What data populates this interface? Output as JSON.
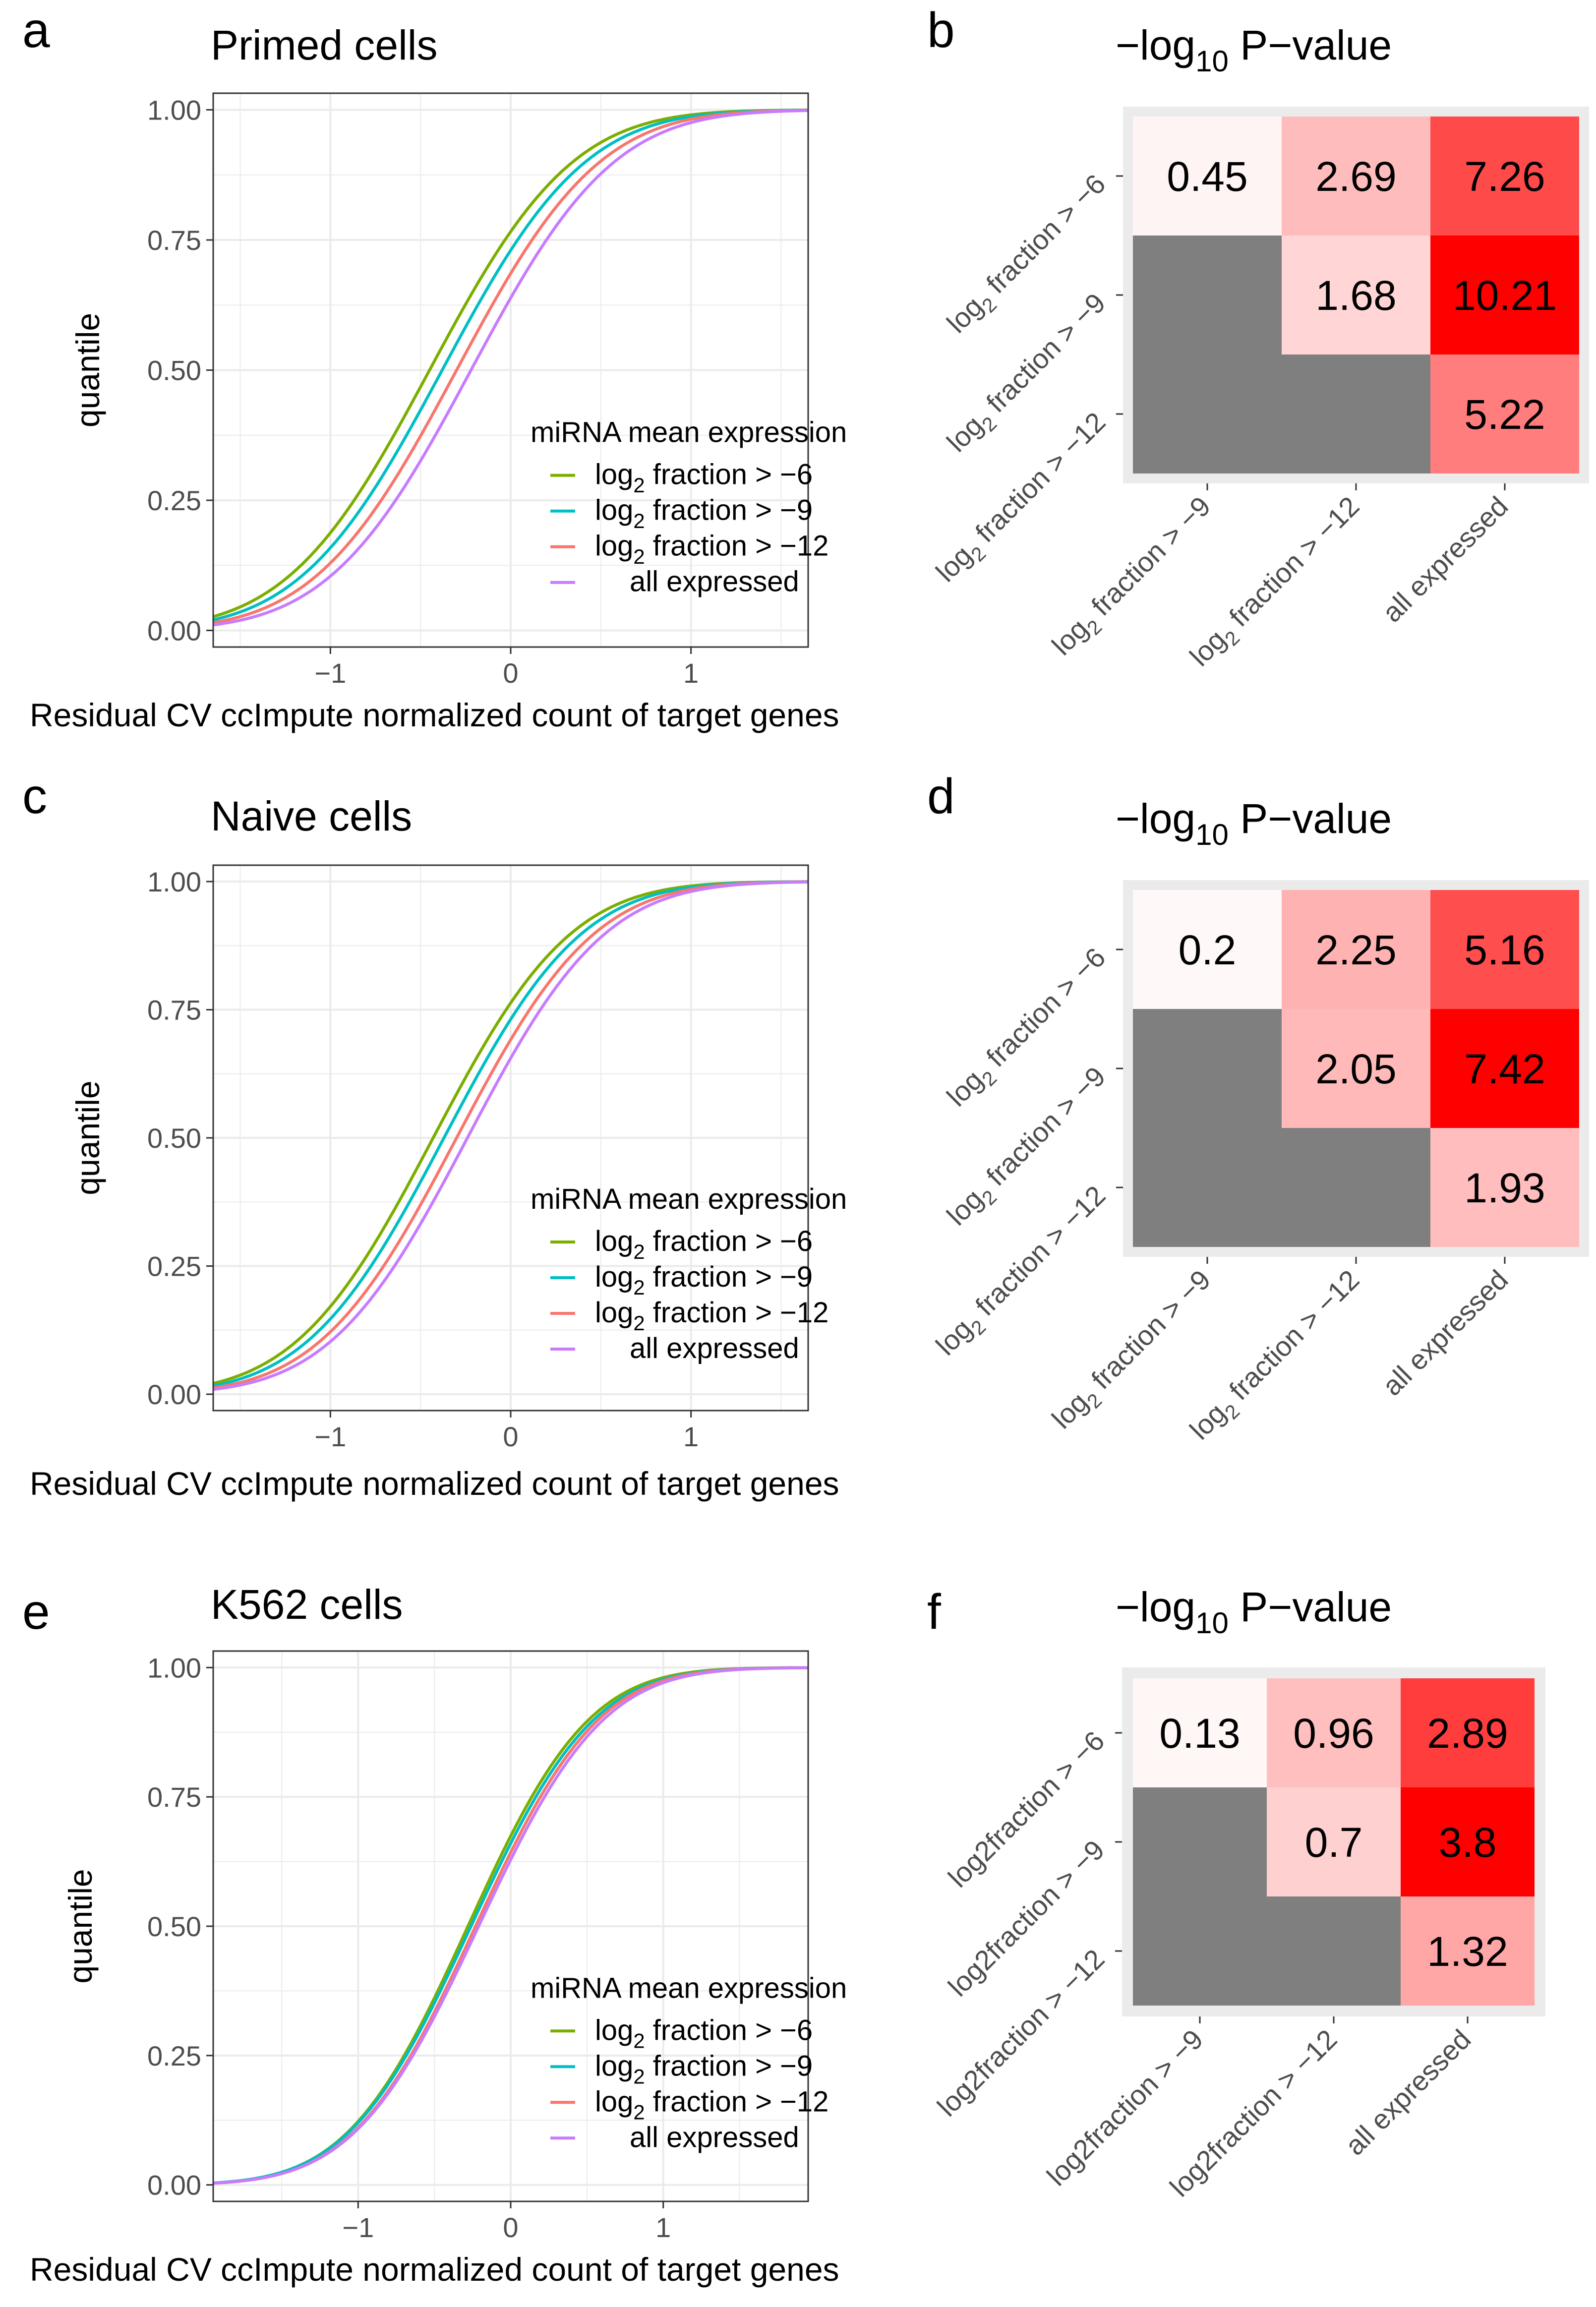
{
  "figure": {
    "ylabel": "quantile",
    "xlabel": "Residual CV ccImpute normalized count of target genes",
    "legend_title": "miRNA mean expression",
    "heatmap_title_prefix": "−log",
    "heatmap_title_sub": "10",
    "heatmap_title_suffix": " P−value",
    "series_colors": {
      "log2 fraction > -6": "#7CAE00",
      "log2 fraction > -9": "#00BFC4",
      "log2 fraction > -12": "#F8766D",
      "all expressed": "#C77CFF"
    },
    "grid_bg": "#EBEBEB",
    "na_color": "#7F7F7F"
  },
  "chart_data": [
    {
      "panel": "a",
      "type": "line",
      "title": "Primed cells",
      "xlabel": "Residual CV ccImpute normalized count of target genes",
      "ylabel": "quantile",
      "xlim": [
        -1.65,
        1.65
      ],
      "ylim": [
        0,
        1
      ],
      "xticks": [
        -1,
        0,
        1
      ],
      "xtick_labels": [
        "−1",
        "0",
        "1"
      ],
      "yticks": [
        0,
        0.25,
        0.5,
        0.75,
        1
      ],
      "ytick_labels": [
        "0.00",
        "0.25",
        "0.50",
        "0.75",
        "1.00"
      ],
      "legend_title": "miRNA mean expression",
      "legend_position": "bottom-right",
      "series": [
        {
          "name": "log2 fraction > -6",
          "legend_pre": "log",
          "legend_sub": "2",
          "legend_post": " fraction > −6",
          "color": "#7CAE00",
          "mu": -0.45,
          "sigma": 0.62
        },
        {
          "name": "log2 fraction > -9",
          "legend_pre": "log",
          "legend_sub": "2",
          "legend_post": " fraction > −9",
          "color": "#00BFC4",
          "mu": -0.38,
          "sigma": 0.62
        },
        {
          "name": "log2 fraction > -12",
          "legend_pre": "log",
          "legend_sub": "2",
          "legend_post": " fraction > −12",
          "color": "#F8766D",
          "mu": -0.3,
          "sigma": 0.62
        },
        {
          "name": "all expressed",
          "legend_pre": "all expressed",
          "legend_sub": "",
          "legend_post": "",
          "color": "#C77CFF",
          "mu": -0.22,
          "sigma": 0.62
        }
      ]
    },
    {
      "panel": "b",
      "type": "heatmap",
      "title": "−log10 P−value",
      "rows": [
        "log2 fraction > -6",
        "log2 fraction > -9",
        "log2 fraction > -12"
      ],
      "cols": [
        "log2 fraction > -9",
        "log2 fraction > -12",
        "all expressed"
      ],
      "row_labels": [
        {
          "pre": "log",
          "sub": "2",
          "post": " fraction > −6"
        },
        {
          "pre": "log",
          "sub": "2",
          "post": " fraction > −9"
        },
        {
          "pre": "log",
          "sub": "2",
          "post": " fraction > −12"
        }
      ],
      "col_labels": [
        {
          "pre": "log",
          "sub": "2",
          "post": " fraction > −9"
        },
        {
          "pre": "log",
          "sub": "2",
          "post": " fraction > −12"
        },
        {
          "pre": "all expressed",
          "sub": "",
          "post": ""
        }
      ],
      "values": [
        [
          0.45,
          2.69,
          7.26
        ],
        [
          null,
          1.68,
          10.21
        ],
        [
          null,
          null,
          5.22
        ]
      ],
      "labels": [
        [
          "0.45",
          "2.69",
          "7.26"
        ],
        [
          "",
          "1.68",
          "10.21"
        ],
        [
          "",
          "",
          "5.22"
        ]
      ],
      "vmax": 10.21
    },
    {
      "panel": "c",
      "type": "line",
      "title": "Naive cells",
      "xlabel": "Residual CV ccImpute normalized count of target genes",
      "ylabel": "quantile",
      "xlim": [
        -1.65,
        1.65
      ],
      "ylim": [
        0,
        1
      ],
      "xticks": [
        -1,
        0,
        1
      ],
      "xtick_labels": [
        "−1",
        "0",
        "1"
      ],
      "yticks": [
        0,
        0.25,
        0.5,
        0.75,
        1
      ],
      "ytick_labels": [
        "0.00",
        "0.25",
        "0.50",
        "0.75",
        "1.00"
      ],
      "legend_title": "miRNA mean expression",
      "legend_position": "bottom-right",
      "series": [
        {
          "name": "log2 fraction > -6",
          "legend_pre": "log",
          "legend_sub": "2",
          "legend_post": " fraction > −6",
          "color": "#7CAE00",
          "mu": -0.43,
          "sigma": 0.6
        },
        {
          "name": "log2 fraction > -9",
          "legend_pre": "log",
          "legend_sub": "2",
          "legend_post": " fraction > −9",
          "color": "#00BFC4",
          "mu": -0.37,
          "sigma": 0.6
        },
        {
          "name": "log2 fraction > -12",
          "legend_pre": "log",
          "legend_sub": "2",
          "legend_post": " fraction > −12",
          "color": "#F8766D",
          "mu": -0.3,
          "sigma": 0.6
        },
        {
          "name": "all expressed",
          "legend_pre": "all expressed",
          "legend_sub": "",
          "legend_post": "",
          "color": "#C77CFF",
          "mu": -0.24,
          "sigma": 0.6
        }
      ]
    },
    {
      "panel": "d",
      "type": "heatmap",
      "title": "−log10 P−value",
      "rows": [
        "log2 fraction > -6",
        "log2 fraction > -9",
        "log2 fraction > -12"
      ],
      "cols": [
        "log2 fraction > -9",
        "log2 fraction > -12",
        "all expressed"
      ],
      "row_labels": [
        {
          "pre": "log",
          "sub": "2",
          "post": " fraction > −6"
        },
        {
          "pre": "log",
          "sub": "2",
          "post": " fraction > −9"
        },
        {
          "pre": "log",
          "sub": "2",
          "post": " fraction > −12"
        }
      ],
      "col_labels": [
        {
          "pre": "log",
          "sub": "2",
          "post": " fraction > −9"
        },
        {
          "pre": "log",
          "sub": "2",
          "post": " fraction > −12"
        },
        {
          "pre": "all expressed",
          "sub": "",
          "post": ""
        }
      ],
      "values": [
        [
          0.2,
          2.25,
          5.16
        ],
        [
          null,
          2.05,
          7.42
        ],
        [
          null,
          null,
          1.93
        ]
      ],
      "labels": [
        [
          "0.2",
          "2.25",
          "5.16"
        ],
        [
          "",
          "2.05",
          "7.42"
        ],
        [
          "",
          "",
          "1.93"
        ]
      ],
      "vmax": 7.42
    },
    {
      "panel": "e",
      "type": "line",
      "title": "K562 cells",
      "xlabel": "Residual CV ccImpute normalized count of target genes",
      "ylabel": "quantile",
      "xlim": [
        -1.95,
        1.95
      ],
      "ylim": [
        0,
        1
      ],
      "xticks": [
        -1,
        0,
        1
      ],
      "xtick_labels": [
        "−1",
        "0",
        "1"
      ],
      "yticks": [
        0,
        0.25,
        0.5,
        0.75,
        1
      ],
      "ytick_labels": [
        "0.00",
        "0.25",
        "0.50",
        "0.75",
        "1.00"
      ],
      "legend_title": "miRNA mean expression",
      "legend_position": "bottom-right",
      "series": [
        {
          "name": "log2 fraction > -6",
          "legend_pre": "log",
          "legend_sub": "2",
          "legend_post": " fraction > −6",
          "color": "#7CAE00",
          "mu": -0.28,
          "sigma": 0.62
        },
        {
          "name": "log2 fraction > -9",
          "legend_pre": "log",
          "legend_sub": "2",
          "legend_post": " fraction > −9",
          "color": "#00BFC4",
          "mu": -0.26,
          "sigma": 0.63
        },
        {
          "name": "log2 fraction > -12",
          "legend_pre": "log",
          "legend_sub": "2",
          "legend_post": " fraction > −12",
          "color": "#F8766D",
          "mu": -0.23,
          "sigma": 0.63
        },
        {
          "name": "all expressed",
          "legend_pre": "all expressed",
          "legend_sub": "",
          "legend_post": "",
          "color": "#C77CFF",
          "mu": -0.21,
          "sigma": 0.64
        }
      ]
    },
    {
      "panel": "f",
      "type": "heatmap",
      "title": "−log10 P−value",
      "rows": [
        "log2fraction > -6",
        "log2fraction > -9",
        "log2fraction > -12"
      ],
      "cols": [
        "log2fraction > -9",
        "log2fraction > -12",
        "all expressed"
      ],
      "row_labels": [
        {
          "pre": "log2fraction > −6",
          "sub": "",
          "post": ""
        },
        {
          "pre": "log2fraction > −9",
          "sub": "",
          "post": ""
        },
        {
          "pre": "log2fraction > −12",
          "sub": "",
          "post": ""
        }
      ],
      "col_labels": [
        {
          "pre": "log2fraction > −9",
          "sub": "",
          "post": ""
        },
        {
          "pre": "log2fraction > −12",
          "sub": "",
          "post": ""
        },
        {
          "pre": "all expressed",
          "sub": "",
          "post": ""
        }
      ],
      "values": [
        [
          0.13,
          0.96,
          2.89
        ],
        [
          null,
          0.7,
          3.8
        ],
        [
          null,
          null,
          1.32
        ]
      ],
      "labels": [
        [
          "0.13",
          "0.96",
          "2.89"
        ],
        [
          "",
          "0.7",
          "3.8"
        ],
        [
          "",
          "",
          "1.32"
        ]
      ],
      "vmax": 3.8
    }
  ]
}
